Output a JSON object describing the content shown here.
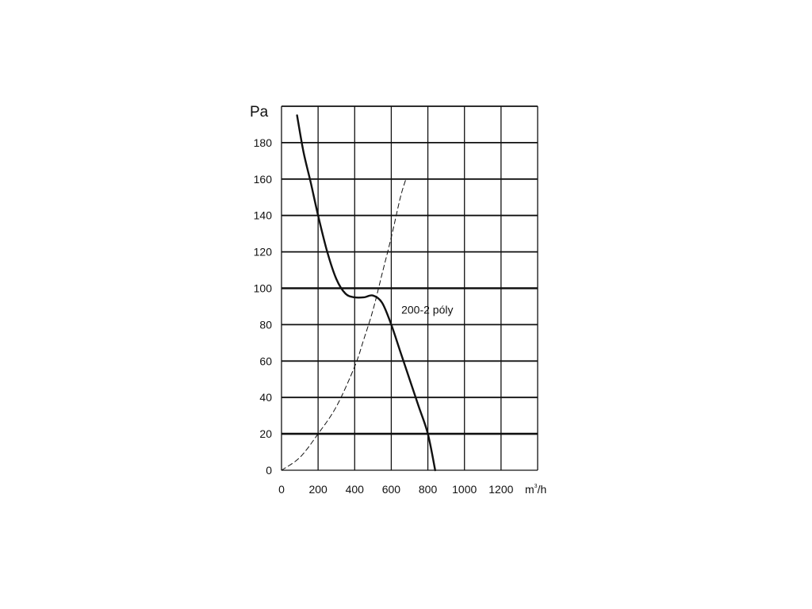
{
  "chart_data": {
    "type": "line",
    "title": "",
    "ylabel": "Pa",
    "xlabel_unit": {
      "base": "m",
      "sup": "3",
      "suffix": "/h"
    },
    "xlim": [
      0,
      1400
    ],
    "ylim": [
      0,
      200
    ],
    "x_ticks": [
      "0",
      "200",
      "400",
      "600",
      "800",
      "1000",
      "1200"
    ],
    "y_ticks": [
      "0",
      "20",
      "40",
      "60",
      "80",
      "100",
      "120",
      "140",
      "160",
      "180"
    ],
    "grid": true,
    "annotation": "200-2 póly",
    "series": [
      {
        "name": "200-2 póly",
        "style": "solid",
        "x": [
          85,
          120,
          160,
          200,
          250,
          300,
          350,
          400,
          450,
          500,
          550,
          600,
          650,
          700,
          750,
          800,
          840
        ],
        "y": [
          195,
          175,
          158,
          140,
          120,
          105,
          97,
          95,
          95,
          96,
          92,
          80,
          65,
          50,
          35,
          20,
          0
        ]
      },
      {
        "name": "",
        "style": "dashed",
        "x": [
          0,
          100,
          200,
          300,
          400,
          450,
          500,
          550,
          600,
          650,
          680
        ],
        "y": [
          0,
          7,
          20,
          35,
          57,
          72,
          88,
          108,
          128,
          150,
          160
        ]
      }
    ]
  }
}
